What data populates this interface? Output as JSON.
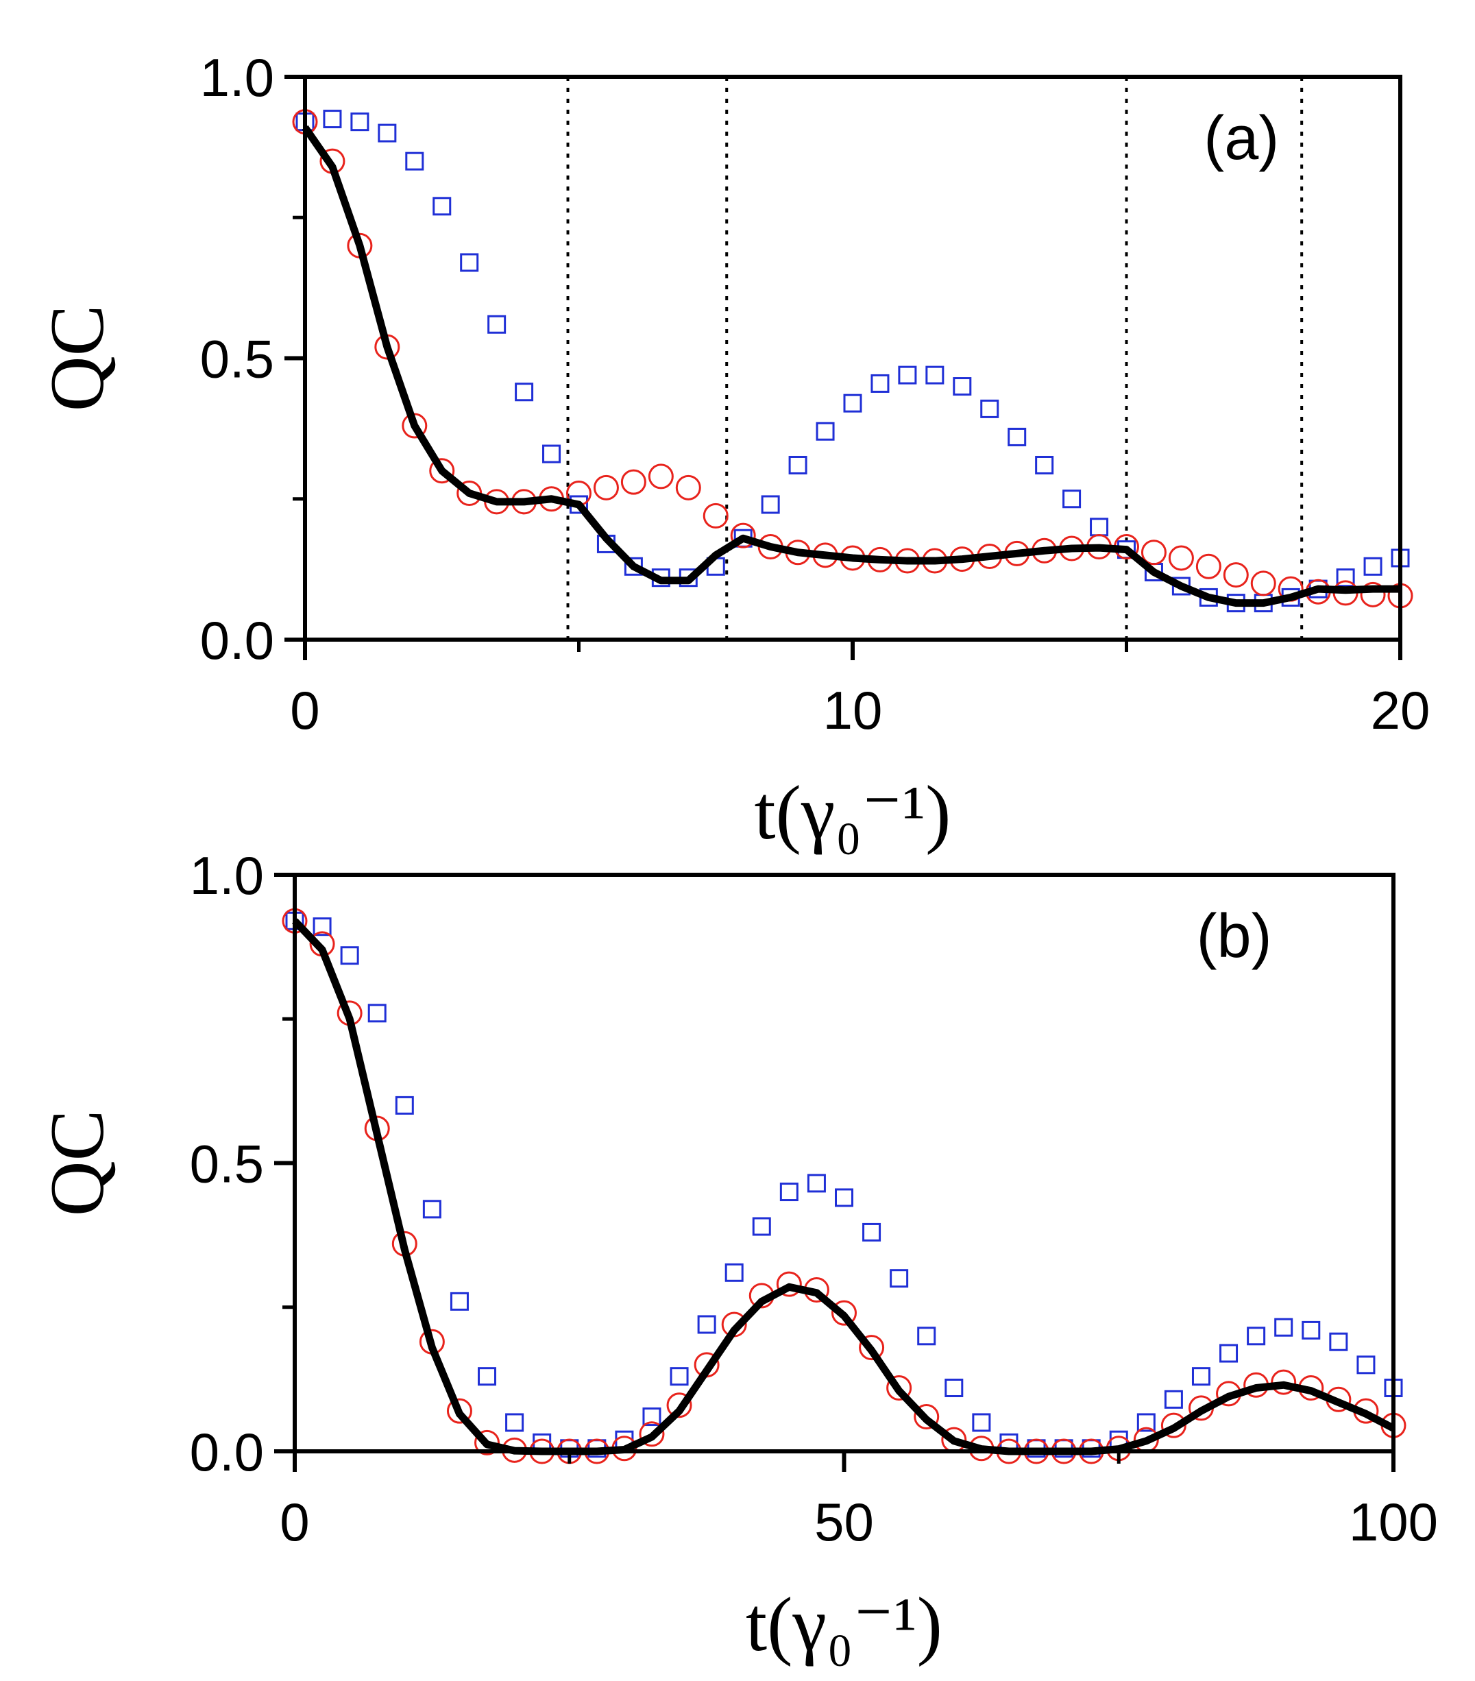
{
  "chart_data": [
    {
      "type": "line",
      "annotation": "(a)",
      "ylabel": "QC",
      "xlabel": "t(γ₀⁻¹)",
      "xlim": [
        0,
        20
      ],
      "xticks": [
        0,
        10,
        20
      ],
      "xminorticks": [
        5,
        15
      ],
      "ylim": [
        0,
        1
      ],
      "yticks": [
        {
          "value": 0,
          "label": "0.0"
        },
        {
          "value": 0.5,
          "label": "0.5"
        },
        {
          "value": 1,
          "label": "1.0"
        }
      ],
      "yminorticks": [
        0.25,
        0.75
      ],
      "vlines": [
        4.8,
        7.7,
        15,
        18.2
      ],
      "x": [
        0,
        0.5,
        1,
        1.5,
        2,
        2.5,
        3,
        3.5,
        4,
        4.5,
        5,
        5.5,
        6,
        6.5,
        7,
        7.5,
        8,
        8.5,
        9,
        9.5,
        10,
        10.5,
        11,
        11.5,
        12,
        12.5,
        13,
        13.5,
        14,
        14.5,
        15,
        15.5,
        16,
        16.5,
        17,
        17.5,
        18,
        18.5,
        19,
        19.5,
        20
      ],
      "series": [
        {
          "color": "#1f2fd6",
          "marker": "square",
          "values": [
            0.92,
            0.925,
            0.92,
            0.9,
            0.85,
            0.77,
            0.67,
            0.56,
            0.44,
            0.33,
            0.24,
            0.17,
            0.13,
            0.11,
            0.11,
            0.13,
            0.18,
            0.24,
            0.31,
            0.37,
            0.42,
            0.455,
            0.47,
            0.47,
            0.45,
            0.41,
            0.36,
            0.31,
            0.25,
            0.2,
            0.16,
            0.12,
            0.095,
            0.075,
            0.065,
            0.065,
            0.075,
            0.09,
            0.11,
            0.13,
            0.145
          ]
        },
        {
          "color": "#e8231c",
          "marker": "circle",
          "values": [
            0.92,
            0.85,
            0.7,
            0.52,
            0.38,
            0.3,
            0.26,
            0.245,
            0.245,
            0.25,
            0.26,
            0.27,
            0.28,
            0.29,
            0.27,
            0.22,
            0.185,
            0.165,
            0.155,
            0.15,
            0.145,
            0.142,
            0.14,
            0.14,
            0.143,
            0.148,
            0.153,
            0.158,
            0.162,
            0.165,
            0.165,
            0.155,
            0.145,
            0.13,
            0.115,
            0.1,
            0.09,
            0.085,
            0.083,
            0.08,
            0.078
          ]
        },
        {
          "color": "#000000",
          "marker": "none",
          "values": [
            0.91,
            0.84,
            0.7,
            0.52,
            0.38,
            0.3,
            0.26,
            0.245,
            0.245,
            0.25,
            0.24,
            0.18,
            0.13,
            0.105,
            0.105,
            0.15,
            0.18,
            0.165,
            0.155,
            0.15,
            0.145,
            0.142,
            0.14,
            0.14,
            0.143,
            0.148,
            0.153,
            0.158,
            0.162,
            0.163,
            0.16,
            0.12,
            0.095,
            0.075,
            0.065,
            0.065,
            0.075,
            0.09,
            0.088,
            0.09,
            0.09
          ]
        }
      ]
    },
    {
      "type": "line",
      "annotation": "(b)",
      "ylabel": "QC",
      "xlabel": "t(γ₀⁻¹)",
      "xlim": [
        0,
        100
      ],
      "xticks": [
        0,
        50,
        100
      ],
      "xminorticks": [
        25,
        75
      ],
      "ylim": [
        0,
        1
      ],
      "yticks": [
        {
          "value": 0,
          "label": "0.0"
        },
        {
          "value": 0.5,
          "label": "0.5"
        },
        {
          "value": 1,
          "label": "1.0"
        }
      ],
      "yminorticks": [
        0.25,
        0.75
      ],
      "x": [
        0,
        2.5,
        5,
        7.5,
        10,
        12.5,
        15,
        17.5,
        20,
        22.5,
        25,
        27.5,
        30,
        32.5,
        35,
        37.5,
        40,
        42.5,
        45,
        47.5,
        50,
        52.5,
        55,
        57.5,
        60,
        62.5,
        65,
        67.5,
        70,
        72.5,
        75,
        77.5,
        80,
        82.5,
        85,
        87.5,
        90,
        92.5,
        95,
        97.5,
        100
      ],
      "series": [
        {
          "color": "#1f2fd6",
          "marker": "square",
          "values": [
            0.92,
            0.91,
            0.86,
            0.76,
            0.6,
            0.42,
            0.26,
            0.13,
            0.05,
            0.015,
            0.005,
            0.005,
            0.02,
            0.06,
            0.13,
            0.22,
            0.31,
            0.39,
            0.45,
            0.465,
            0.44,
            0.38,
            0.3,
            0.2,
            0.11,
            0.05,
            0.015,
            0.005,
            0.005,
            0.005,
            0.02,
            0.05,
            0.09,
            0.13,
            0.17,
            0.2,
            0.215,
            0.21,
            0.19,
            0.15,
            0.11
          ]
        },
        {
          "color": "#e8231c",
          "marker": "circle",
          "values": [
            0.92,
            0.88,
            0.76,
            0.56,
            0.36,
            0.19,
            0.07,
            0.015,
            0.002,
            0,
            0,
            0,
            0.005,
            0.03,
            0.08,
            0.15,
            0.22,
            0.27,
            0.29,
            0.28,
            0.24,
            0.18,
            0.11,
            0.06,
            0.02,
            0.005,
            0,
            0,
            0,
            0,
            0.005,
            0.02,
            0.045,
            0.075,
            0.1,
            0.115,
            0.12,
            0.11,
            0.09,
            0.07,
            0.045
          ]
        },
        {
          "color": "#000000",
          "marker": "none",
          "values": [
            0.92,
            0.87,
            0.75,
            0.55,
            0.35,
            0.18,
            0.065,
            0.012,
            0.001,
            0,
            0,
            0,
            0.003,
            0.025,
            0.07,
            0.14,
            0.21,
            0.26,
            0.285,
            0.275,
            0.235,
            0.175,
            0.105,
            0.055,
            0.018,
            0.004,
            0,
            0,
            0,
            0,
            0.004,
            0.018,
            0.04,
            0.07,
            0.095,
            0.11,
            0.115,
            0.105,
            0.085,
            0.065,
            0.04
          ]
        }
      ]
    }
  ]
}
